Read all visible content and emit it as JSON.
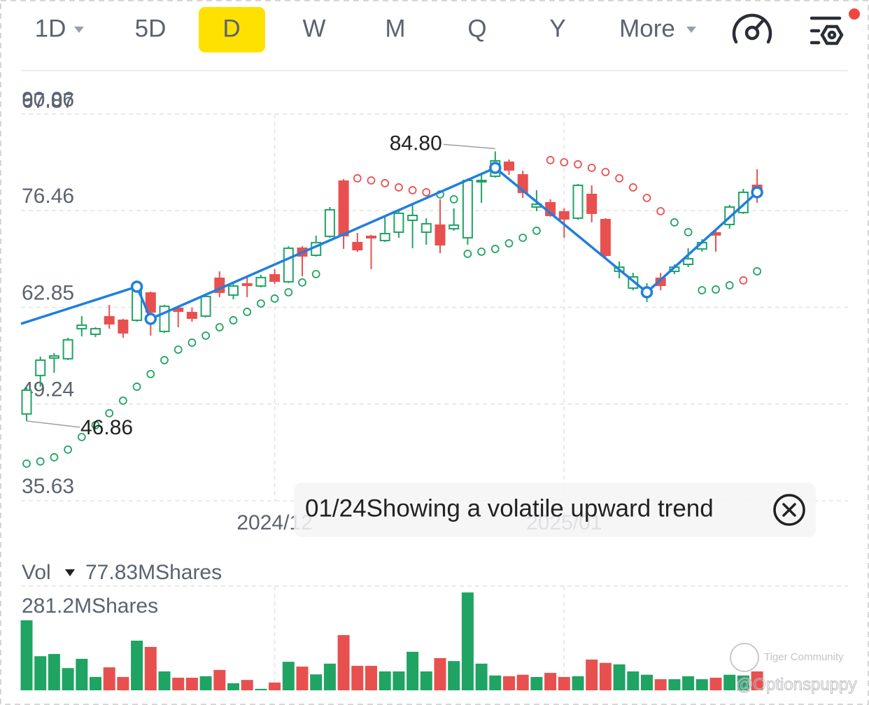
{
  "tabs": [
    "1D",
    "5D",
    "D",
    "W",
    "M",
    "Q",
    "Y",
    "More"
  ],
  "active_tab": 2,
  "chart_data": {
    "type": "candlestick",
    "price_label": "67.87",
    "open": [
      47.85,
      53.26,
      55.72,
      55.62,
      59.85,
      59.06,
      61.52,
      61.03,
      61.03,
      64.87,
      59.46,
      62.71,
      62.12,
      61.62,
      66.94,
      64.58,
      66.15,
      65.85,
      67.43,
      66.45,
      71.17,
      70.18,
      72.84,
      80.61,
      71.96,
      72.84,
      72.25,
      73.43,
      75.1,
      73.43,
      74.42,
      73.92,
      72.64,
      80.52,
      81.3,
      83.27,
      81.5,
      76.97,
      77.56,
      76.28,
      75.4,
      78.74,
      75.2,
      67.92,
      65.56,
      64.77,
      66.94,
      67.92,
      68.9,
      71.07,
      73.33,
      74.51,
      76.19,
      80.02
    ],
    "high": [
      51.78,
      55.92,
      56.41,
      58.57,
      61.62,
      60.05,
      63.2,
      61.23,
      66.25,
      65.07,
      63.2,
      63.0,
      62.8,
      64.58,
      67.92,
      66.25,
      67.23,
      67.43,
      68.22,
      71.46,
      71.46,
      72.94,
      76.97,
      80.91,
      73.33,
      73.04,
      75.6,
      76.58,
      77.56,
      75.4,
      78.06,
      76.78,
      81.01,
      81.5,
      84.8,
      83.66,
      82.09,
      79.34,
      78.06,
      76.78,
      80.22,
      80.02,
      75.4,
      69.3,
      67.72,
      66.25,
      67.72,
      68.9,
      71.17,
      72.45,
      73.63,
      77.27,
      79.53,
      82.29
    ],
    "low": [
      46.86,
      51.68,
      53.65,
      55.42,
      58.77,
      58.67,
      59.85,
      58.57,
      60.84,
      58.87,
      59.26,
      60.05,
      60.84,
      61.43,
      64.28,
      63.98,
      64.28,
      65.66,
      66.15,
      66.25,
      67.23,
      69.99,
      72.64,
      71.07,
      70.68,
      68.22,
      72.05,
      72.64,
      71.17,
      71.66,
      70.48,
      73.63,
      71.66,
      77.56,
      81.11,
      81.5,
      78.25,
      76.38,
      75.6,
      72.64,
      75.2,
      74.81,
      69.89,
      66.94,
      65.26,
      63.59,
      65.26,
      67.53,
      68.51,
      70.68,
      70.68,
      73.92,
      75.99,
      77.56
    ],
    "close": [
      51.19,
      55.42,
      56.01,
      58.28,
      60.34,
      59.85,
      60.54,
      59.26,
      65.76,
      62.21,
      63.0,
      62.31,
      61.33,
      64.38,
      64.97,
      65.85,
      65.95,
      67.04,
      66.54,
      71.17,
      70.09,
      71.96,
      76.58,
      72.94,
      70.97,
      72.64,
      73.23,
      76.09,
      75.79,
      74.61,
      71.66,
      74.42,
      80.71,
      80.71,
      83.47,
      82.19,
      79.04,
      77.37,
      75.79,
      75.3,
      80.02,
      76.09,
      70.18,
      68.51,
      67.13,
      65.56,
      65.95,
      68.51,
      69.69,
      71.96,
      73.04,
      76.97,
      79.04,
      79.04
    ],
    "up_color": "#1fa463",
    "down_color": "#e8504f",
    "ylim": [
      35.63,
      90.06
    ],
    "yticks": [
      35.63,
      49.24,
      62.85,
      76.46,
      90.06
    ],
    "grid": true,
    "annotations": [
      {
        "value": 84.8,
        "label": "84.80"
      },
      {
        "value": 46.86,
        "label": "46.86"
      }
    ],
    "sar": {
      "up": [
        40.86,
        41.16,
        41.75,
        42.83,
        44.6,
        46.27,
        47.95,
        49.72,
        51.68,
        53.46,
        55.42,
        56.9,
        57.88,
        58.87,
        60.05,
        61.03,
        62.21,
        63.39,
        64.08,
        64.97,
        66.35,
        67.53,
        null,
        null,
        null,
        null,
        null,
        null,
        null,
        null,
        78.74,
        78.06,
        70.38,
        70.68,
        71.07,
        71.86,
        72.64,
        73.63,
        null,
        null,
        null,
        null,
        null,
        null,
        null,
        null,
        null,
        74.81,
        73.43,
        65.26,
        65.36,
        65.95,
        null,
        67.92
      ],
      "down": [
        null,
        null,
        null,
        null,
        null,
        null,
        null,
        null,
        null,
        null,
        null,
        null,
        null,
        null,
        null,
        null,
        null,
        null,
        null,
        null,
        null,
        null,
        null,
        null,
        81.01,
        80.71,
        80.32,
        79.73,
        79.34,
        79.04,
        null,
        null,
        null,
        null,
        null,
        null,
        null,
        null,
        83.57,
        83.27,
        82.98,
        82.48,
        81.89,
        81.01,
        79.73,
        78.25,
        76.38,
        null,
        null,
        null,
        null,
        null,
        66.64,
        null
      ]
    },
    "trendline": {
      "color": "#1f7fe0",
      "x": [
        0,
        8,
        9,
        34,
        45,
        53
      ],
      "values": [
        60.54,
        65.76,
        61.23,
        82.48,
        64.97,
        79.04
      ]
    },
    "date_ticks": [
      {
        "value": 18,
        "label": "2024/12"
      },
      {
        "value": 39,
        "label": "2025/01"
      }
    ],
    "volume": {
      "title": "Vol",
      "current": "77.83MShares",
      "values": [
        189,
        92,
        98,
        60,
        85,
        36,
        62,
        36,
        134,
        117,
        51,
        34,
        34,
        38,
        55,
        19,
        28,
        4,
        21,
        77,
        64,
        43,
        72,
        149,
        66,
        66,
        51,
        51,
        104,
        51,
        87,
        79,
        264,
        72,
        40,
        38,
        42,
        36,
        47,
        36,
        38,
        83,
        74,
        70,
        51,
        42,
        30,
        30,
        38,
        30,
        34,
        42,
        40,
        51
      ],
      "ylim": [
        0,
        281.2
      ],
      "yticks": [
        {
          "value": 281.2,
          "label": "281.2MShares"
        }
      ]
    }
  },
  "tooltip": {
    "text": "01/24Showing a volatile upward trend"
  },
  "watermark": [
    "Tiger Community",
    "@Optionspuppy"
  ]
}
